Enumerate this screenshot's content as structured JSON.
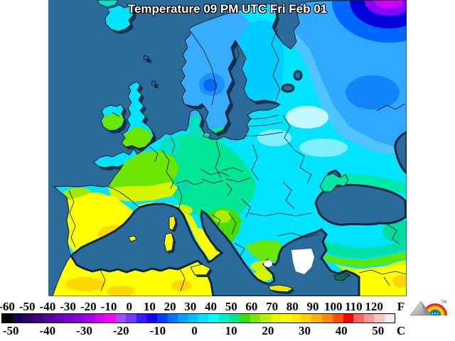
{
  "title": "Temperature 09 PM UTC Fri Feb 01",
  "scale": {
    "f_unit": "F",
    "c_unit": "C",
    "f_ticks": [
      -60,
      -50,
      -40,
      -30,
      -20,
      -10,
      0,
      10,
      20,
      30,
      40,
      50,
      60,
      70,
      80,
      90,
      100,
      110,
      120
    ],
    "c_ticks": [
      -50,
      -40,
      -30,
      -20,
      -10,
      0,
      10,
      20,
      30,
      40,
      50
    ],
    "colors": [
      "#000000",
      "#16004e",
      "#2b0066",
      "#3f0080",
      "#540099",
      "#6800b2",
      "#7d00c6",
      "#9100d9",
      "#a800e8",
      "#d400f5",
      "#ff00ff",
      "#a64dff",
      "#6e3cff",
      "#3c1aff",
      "#1a00ff",
      "#0040ff",
      "#0077ff",
      "#00a2ff",
      "#00c4ff",
      "#00e0ff",
      "#00ffff",
      "#00f0c0",
      "#00e596",
      "#38e000",
      "#7ae800",
      "#b4f000",
      "#e6f800",
      "#ffff00",
      "#ffe800",
      "#ffd000",
      "#ffb000",
      "#ff8c00",
      "#ff5000",
      "#ff0000",
      "#ff6666",
      "#ff9999",
      "#ffc4c4",
      "#f4ecec"
    ]
  },
  "logo": {
    "trademark": "TM"
  },
  "map": {
    "ocean_color": "#2a6b9c",
    "coast_shadow_color": "#0d3150",
    "border_color": "#141414",
    "no_data_color": "#ffffff",
    "region_colors": {
      "iberia_yellow": "#ffff00",
      "iberia_gold": "#ffd700",
      "france_green": "#6ae600",
      "france_yellow_green": "#d6f400",
      "central_europe_spring": "#00e596",
      "east_europe_cyan": "#00e4ff",
      "scandinavia_blue": "#38acff",
      "sweden_cold_core": "#0a68f0",
      "finland_cyan": "#00ccff",
      "northeast_blue": "#2ea9ff",
      "arctic_cold_rings": [
        "#0066ff",
        "#0000dd",
        "#8800ff",
        "#d000ff"
      ],
      "black_sea_coast_spring": "#00e8a8",
      "iceland_cyan": "#29c6ff"
    }
  }
}
